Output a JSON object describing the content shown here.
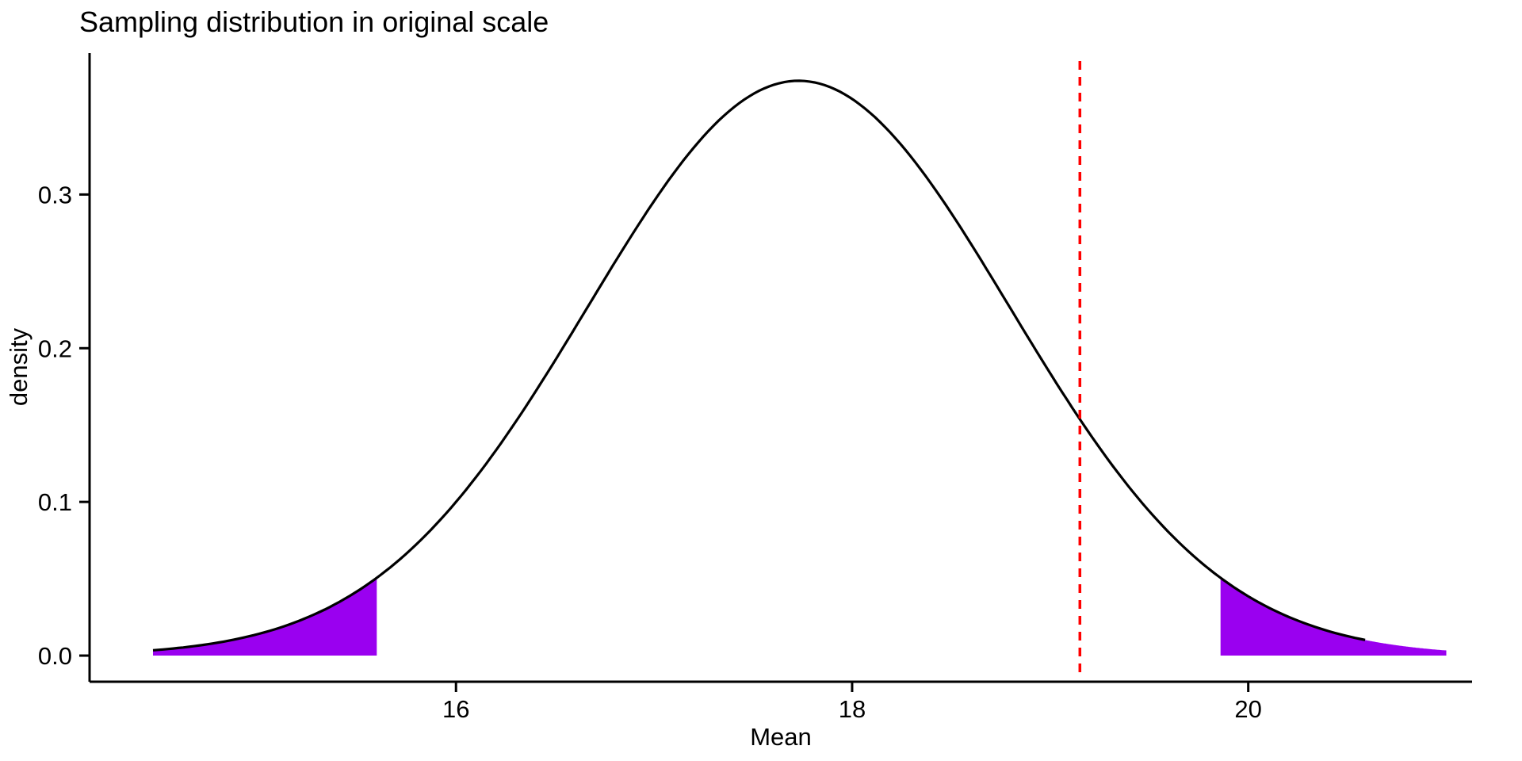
{
  "page": {
    "background": "#FFFFFF"
  },
  "chart_data": {
    "type": "area",
    "title": "Sampling distribution in original scale",
    "xlabel": "Mean",
    "ylabel": "density",
    "grid": "off",
    "legend": "none",
    "x_axis": {
      "range": [
        14.15,
        21.13
      ],
      "ticks": [
        {
          "value": 16,
          "label": "16"
        },
        {
          "value": 18,
          "label": "18"
        },
        {
          "value": 20,
          "label": "20"
        }
      ]
    },
    "y_axis": {
      "range": [
        -0.017,
        0.392
      ],
      "ticks": [
        {
          "value": 0.0,
          "label": "0.0"
        },
        {
          "value": 0.1,
          "label": "0.1"
        },
        {
          "value": 0.2,
          "label": "0.2"
        },
        {
          "value": 0.3,
          "label": "0.3"
        }
      ]
    },
    "density_curve": {
      "distribution": "normal",
      "mean": 17.73,
      "sd": 1.065,
      "peak_density": 0.374,
      "x_range": [
        14.47,
        20.59
      ],
      "color": "#000000"
    },
    "shaded_tails": [
      {
        "name": "lower-tail",
        "from": 14.47,
        "to": 15.6,
        "fill": "#9A00F0"
      },
      {
        "name": "upper-tail",
        "from": 19.86,
        "to": 21.0,
        "fill": "#9A00F0"
      }
    ],
    "reference_line": {
      "x": 19.15,
      "orientation": "vertical",
      "style": "dashed",
      "color": "#FF0000"
    }
  }
}
